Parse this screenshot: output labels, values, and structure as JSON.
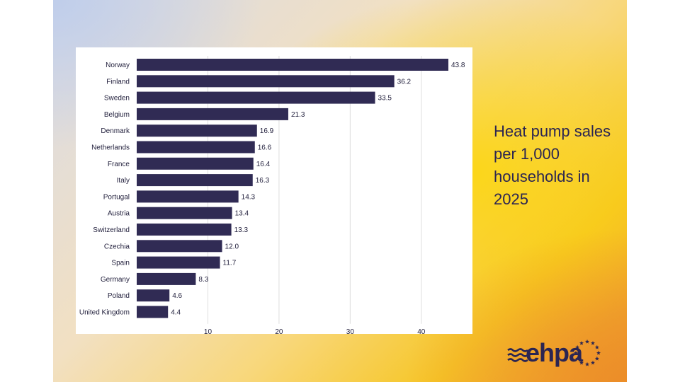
{
  "side_title": "Heat pump sales per 1,000 households in 2025",
  "logo_text": "ehpa",
  "colors": {
    "bar": "#302b54",
    "text": "#2b2552"
  },
  "chart_data": {
    "type": "bar",
    "orientation": "horizontal",
    "title": "Heat pump sales per 1,000 households in 2025",
    "categories": [
      "Norway",
      "Finland",
      "Sweden",
      "Belgium",
      "Denmark",
      "Netherlands",
      "France",
      "Italy",
      "Portugal",
      "Austria",
      "Switzerland",
      "Czechia",
      "Spain",
      "Germany",
      "Poland",
      "United Kingdom"
    ],
    "values": [
      43.8,
      36.2,
      33.5,
      21.3,
      16.9,
      16.6,
      16.4,
      16.3,
      14.3,
      13.4,
      13.3,
      12.0,
      11.7,
      8.3,
      4.6,
      4.4
    ],
    "value_labels": [
      "43.8",
      "36.2",
      "33.5",
      "21.3",
      "16.9",
      "16.6",
      "16.4",
      "16.3",
      "14.3",
      "13.4",
      "13.3",
      "12.0",
      "11.7",
      "8.3",
      "4.6",
      "4.4"
    ],
    "xticks": [
      10,
      20,
      30,
      40
    ],
    "xlim": [
      0,
      46
    ],
    "xlabel": "",
    "ylabel": "",
    "grid": true
  }
}
